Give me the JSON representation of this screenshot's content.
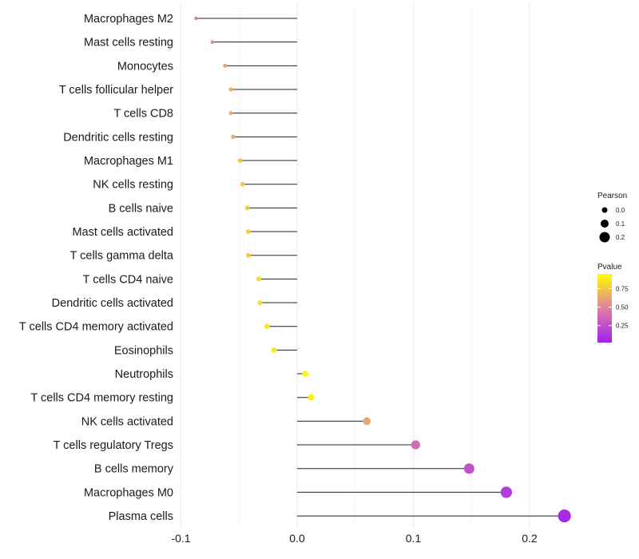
{
  "chart_data": {
    "type": "lollipop",
    "title": "",
    "xlabel": "",
    "ylabel": "",
    "xlim": [
      -0.1,
      0.23
    ],
    "x_ticks": [
      -0.1,
      0.0,
      0.1,
      0.2
    ],
    "x_tick_labels": [
      "-0.1",
      "0.0",
      "0.1",
      "0.2"
    ],
    "grid": true,
    "categories": [
      "Macrophages M2",
      "Mast cells resting",
      "Monocytes",
      "T cells follicular helper",
      "T cells CD8",
      "Dendritic cells resting",
      "Macrophages M1",
      "NK cells resting",
      "B cells naive",
      "Mast cells activated",
      "T cells gamma delta",
      "T cells CD4 naive",
      "Dendritic cells activated",
      "T cells CD4 memory activated",
      "Eosinophils",
      "Neutrophils",
      "T cells CD4 memory resting",
      "NK cells activated",
      "T cells regulatory  Tregs",
      "B cells memory",
      "Macrophages M0",
      "Plasma cells"
    ],
    "pearson": [
      -0.087,
      -0.073,
      -0.062,
      -0.057,
      -0.057,
      -0.055,
      -0.049,
      -0.047,
      -0.043,
      -0.042,
      -0.042,
      -0.033,
      -0.032,
      -0.026,
      -0.02,
      0.007,
      0.012,
      0.06,
      0.102,
      0.148,
      0.18,
      0.23
    ],
    "pvalue": [
      0.42,
      0.55,
      0.65,
      0.68,
      0.68,
      0.7,
      0.75,
      0.78,
      0.8,
      0.8,
      0.8,
      0.86,
      0.88,
      0.9,
      0.92,
      0.97,
      0.95,
      0.65,
      0.4,
      0.25,
      0.15,
      0.05
    ],
    "legend_position": "right",
    "legend_size": {
      "title": "Pearson",
      "values": [
        0.0,
        0.1,
        0.2
      ],
      "labels": [
        "0.0",
        "0.1",
        "0.2"
      ]
    },
    "legend_color": {
      "title": "Pvalue",
      "values": [
        0.75,
        0.5,
        0.25
      ],
      "labels": [
        "0.75",
        "0.50",
        "0.25"
      ],
      "low_color": "#a020f0",
      "mid_color": "#e07fa0",
      "high_color": "#ffff00"
    }
  }
}
